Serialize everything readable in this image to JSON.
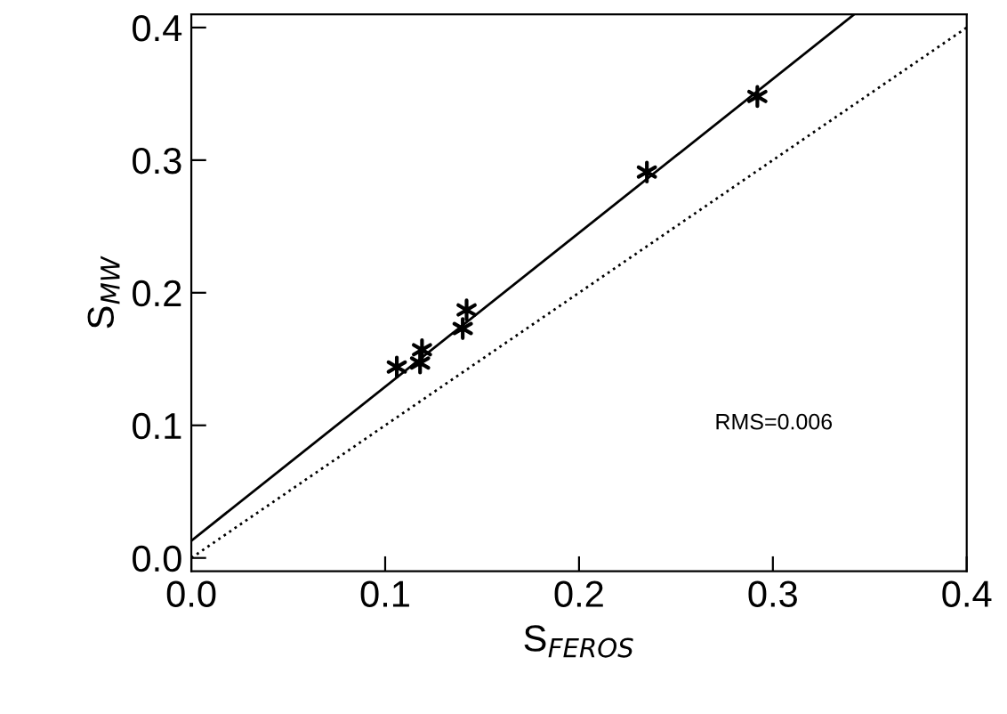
{
  "chart_data": {
    "type": "scatter",
    "xlabel": "S$_{FEROS}$",
    "ylabel": "S$_{MW}$",
    "xlim": [
      0,
      0.4
    ],
    "ylim": [
      -0.01,
      0.41
    ],
    "xticks": [
      {
        "value": 0,
        "label": "0.0"
      },
      0.1,
      0.2,
      0.3,
      0.4
    ],
    "yticks": [
      {
        "value": 0,
        "label": "0.0"
      },
      0.1,
      0.2,
      0.3,
      0.4
    ],
    "grid": false,
    "legend": false,
    "series": [
      {
        "color": "#000000",
        "marker": "cross",
        "x": [
          0.106,
          0.119,
          0.118,
          0.14,
          0.142,
          0.235,
          0.292
        ],
        "values": [
          0.144,
          0.157,
          0.147,
          0.173,
          0.187,
          0.291,
          0.348
        ]
      },
      {
        "type": "line",
        "color": "#000000",
        "marker": "none",
        "line_style": "solid",
        "x": [
          0,
          0.342
        ],
        "values": [
          0.013,
          0.41
        ]
      },
      {
        "type": "line",
        "color": "#000000",
        "marker": "none",
        "line_style": "dotted",
        "x": [
          0,
          0.4
        ],
        "values": [
          0,
          0.4
        ]
      }
    ],
    "annotations": [
      "RMS=0.006"
    ]
  }
}
